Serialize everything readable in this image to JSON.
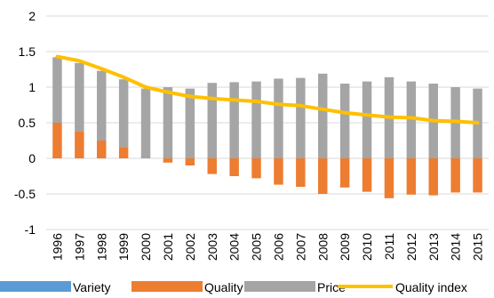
{
  "chart_data": {
    "type": "bar",
    "stacked": true,
    "categories": [
      "1996",
      "1997",
      "1998",
      "1999",
      "2000",
      "2001",
      "2002",
      "2003",
      "2004",
      "2005",
      "2006",
      "2007",
      "2008",
      "2009",
      "2010",
      "2011",
      "2012",
      "2013",
      "2014",
      "2015"
    ],
    "ylim": [
      -1,
      2
    ],
    "yticks": [
      -1,
      -0.5,
      0,
      0.5,
      1,
      1.5,
      2
    ],
    "ytick_labels": [
      "-1",
      "-0.5",
      "0",
      "0.5",
      "1",
      "1.5",
      "2"
    ],
    "grid": true,
    "legend_position": "bottom",
    "series": [
      {
        "name": "Variety",
        "type": "bar",
        "color": "#5B9BD5",
        "values": [
          0,
          0,
          0,
          0,
          0,
          0,
          0,
          0,
          0,
          0,
          0,
          0,
          0,
          0,
          0,
          0,
          0,
          0,
          0,
          0
        ]
      },
      {
        "name": "Quality",
        "type": "bar",
        "color": "#ED7D31",
        "values": [
          0.5,
          0.38,
          0.25,
          0.16,
          0,
          -0.06,
          -0.1,
          -0.22,
          -0.25,
          -0.28,
          -0.37,
          -0.4,
          -0.5,
          -0.41,
          -0.47,
          -0.56,
          -0.51,
          -0.52,
          -0.48,
          -0.48
        ]
      },
      {
        "name": "Price",
        "type": "bar",
        "color": "#A5A5A5",
        "values": [
          0.92,
          0.96,
          0.98,
          0.95,
          0.98,
          1.0,
          0.98,
          1.06,
          1.07,
          1.08,
          1.12,
          1.13,
          1.19,
          1.05,
          1.08,
          1.14,
          1.08,
          1.05,
          1.0,
          0.98
        ]
      },
      {
        "name": "Quality index",
        "type": "line",
        "color": "#FFC000",
        "values": [
          1.43,
          1.37,
          1.26,
          1.14,
          1.0,
          0.93,
          0.87,
          0.84,
          0.82,
          0.8,
          0.76,
          0.74,
          0.69,
          0.64,
          0.61,
          0.58,
          0.57,
          0.53,
          0.52,
          0.5
        ]
      }
    ]
  }
}
